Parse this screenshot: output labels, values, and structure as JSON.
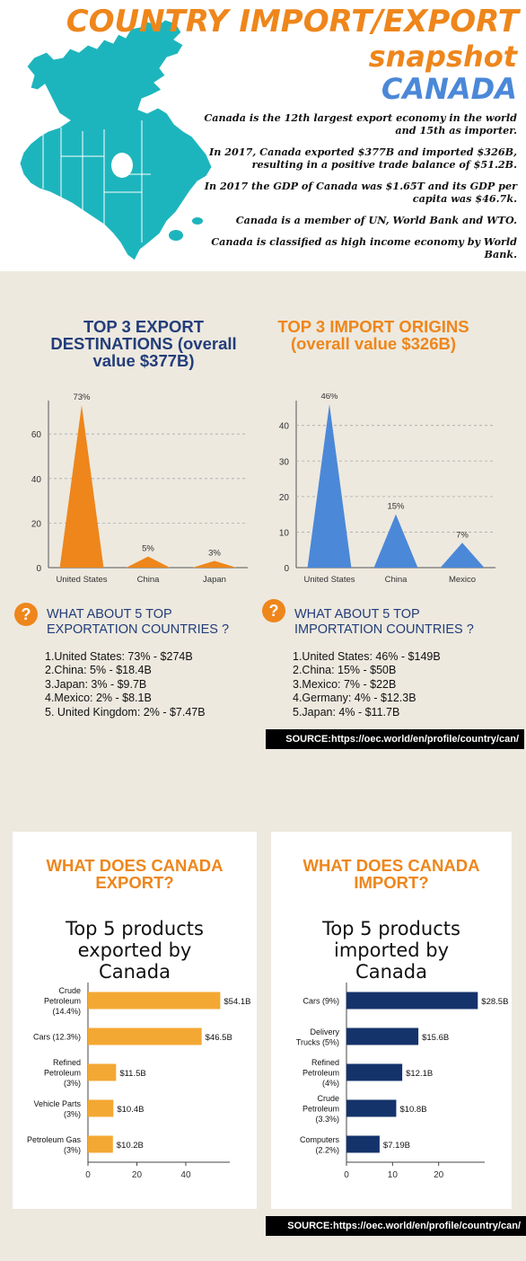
{
  "header": {
    "title_line1": "COUNTRY IMPORT/EXPORT",
    "title_line2": "snapshot",
    "title_line3": "CANADA",
    "facts": [
      "Canada is the 12th largest export economy in the world and 15th as importer.",
      "In 2017, Canada exported $377B and imported $326B, resulting in a positive trade balance of $51.2B.",
      "In 2017 the GDP of Canada was $1.65T and its GDP per capita was $46.7k.",
      "Canada is a member of UN, World Bank and WTO.",
      "Canada is classified as high income economy by World Bank."
    ]
  },
  "colors": {
    "orange": "#ee861b",
    "blue": "#4b88d8",
    "navy": "#223d7a",
    "map_teal": "#1db5bd",
    "bar_yellow": "#f3a833",
    "bar_navy": "#14336b"
  },
  "export_section": {
    "title": "TOP 3 EXPORT DESTINATIONS (overall value $377B)",
    "question": "WHAT ABOUT 5 TOP EXPORTATION COUNTRIES ?",
    "list": [
      "1.United States: 73% - $274B",
      "2.China: 5% - $18.4B",
      "3.Japan: 3% - $9.7B",
      "4.Mexico: 2% - $8.1B",
      "5. United Kingdom: 2% - $7.47B"
    ]
  },
  "import_section": {
    "title": "TOP 3 IMPORT ORIGINS (overall value $326B)",
    "question": "WHAT ABOUT 5 TOP IMPORTATION COUNTRIES ?",
    "list": [
      "1.United States: 46% - $149B",
      "2.China: 15% - $50B",
      "3.Mexico: 7% - $22B",
      "4.Germany: 4% - $12.3B",
      "5.Japan: 4% - $11.7B"
    ]
  },
  "source1": "SOURCE:https://oec.world/en/profile/country/can/",
  "source2": "SOURCE:https://oec.world/en/profile/country/can/",
  "export_card": {
    "title": "WHAT DOES CANADA EXPORT?",
    "subtitle": "Top 5 products exported by Canada"
  },
  "import_card": {
    "title": "WHAT DOES CANADA IMPORT?",
    "subtitle": "Top 5 products imported by Canada"
  },
  "chart_data": [
    {
      "id": "export-destinations",
      "type": "area",
      "categories": [
        "United States",
        "China",
        "Japan"
      ],
      "values": [
        73,
        5,
        3
      ],
      "labels": [
        "73%",
        "5%",
        "3%"
      ],
      "yticks": [
        0,
        20,
        40,
        60
      ],
      "ylim": [
        0,
        75
      ],
      "color": "#ee861b",
      "grid": true
    },
    {
      "id": "import-origins",
      "type": "area",
      "categories": [
        "United States",
        "China",
        "Mexico"
      ],
      "values": [
        46,
        15,
        7
      ],
      "labels": [
        "46%",
        "15%",
        "7%"
      ],
      "yticks": [
        0,
        10,
        20,
        30,
        40
      ],
      "ylim": [
        0,
        47
      ],
      "color": "#4b88d8",
      "grid": true
    },
    {
      "id": "export-products",
      "type": "bar",
      "orientation": "horizontal",
      "categories": [
        "Crude Petroleum (14.4%)",
        "Cars (12.3%)",
        "Refined Petroleum (3%)",
        "Vehicle Parts (3%)",
        "Petroleum Gas (3%)"
      ],
      "category_lines": [
        [
          "Crude",
          "Petroleum",
          "(14.4%)"
        ],
        [
          "Cars (12.3%)"
        ],
        [
          "Refined",
          "Petroleum",
          "(3%)"
        ],
        [
          "Vehicle Parts",
          "(3%)"
        ],
        [
          "Petroleum Gas",
          "(3%)"
        ]
      ],
      "values": [
        54.1,
        46.5,
        11.5,
        10.4,
        10.2
      ],
      "labels": [
        "$54.1B",
        "$46.5B",
        "$11.5B",
        "$10.4B",
        "$10.2B"
      ],
      "xticks": [
        0,
        20,
        40
      ],
      "xlim": [
        0,
        58
      ],
      "color": "#f3a833"
    },
    {
      "id": "import-products",
      "type": "bar",
      "orientation": "horizontal",
      "categories": [
        "Cars (9%)",
        "Delivery Trucks (5%)",
        "Refined Petroleum (4%)",
        "Crude Petroleum (3.3%)",
        "Computers (2.2%)"
      ],
      "category_lines": [
        [
          "Cars (9%)"
        ],
        [
          "Delivery",
          "Trucks (5%)"
        ],
        [
          "Refined",
          "Petroleum",
          "(4%)"
        ],
        [
          "Crude",
          "Petroleum",
          "(3.3%)"
        ],
        [
          "Computers",
          "(2.2%)"
        ]
      ],
      "values": [
        28.5,
        15.6,
        12.1,
        10.8,
        7.19
      ],
      "labels": [
        "$28.5B",
        "$15.6B",
        "$12.1B",
        "$10.8B",
        "$7.19B"
      ],
      "xticks": [
        0,
        10,
        20
      ],
      "xlim": [
        0,
        30
      ],
      "color": "#14336b"
    }
  ]
}
